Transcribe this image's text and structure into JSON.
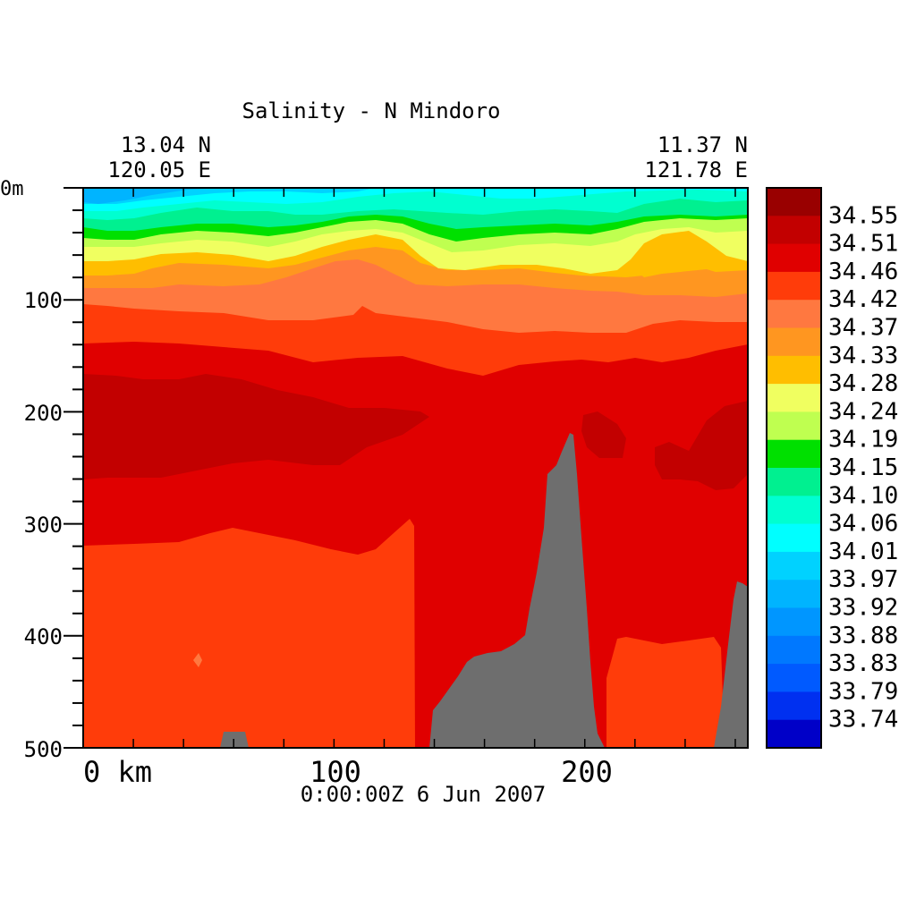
{
  "chart_data": {
    "type": "heatmap",
    "title": "Salinity - N Mindoro",
    "start_point": {
      "lat": "13.04 N",
      "lon": "120.05 E"
    },
    "end_point": {
      "lat": "11.37 N",
      "lon": "121.78 E"
    },
    "timestamp": "0:00:00Z   6 Jun 2007",
    "x_axis": {
      "unit": "km",
      "range": [
        0,
        265
      ],
      "ticks": [
        {
          "value": 0,
          "label": "0 km"
        },
        {
          "value": 100,
          "label": "100"
        },
        {
          "value": 200,
          "label": "200"
        }
      ]
    },
    "y_axis": {
      "unit": "m",
      "range": [
        0,
        500
      ],
      "inverted": true,
      "ticks": [
        {
          "value": 0,
          "label": "0m"
        },
        {
          "value": 100,
          "label": "100"
        },
        {
          "value": 200,
          "label": "200"
        },
        {
          "value": 300,
          "label": "300"
        },
        {
          "value": 400,
          "label": "400"
        },
        {
          "value": 500,
          "label": "500"
        }
      ]
    },
    "colorbar": {
      "levels": [
        "34.55",
        "34.51",
        "34.46",
        "34.42",
        "34.37",
        "34.33",
        "34.28",
        "34.24",
        "34.19",
        "34.15",
        "34.10",
        "34.06",
        "34.01",
        "33.97",
        "33.92",
        "33.88",
        "33.83",
        "33.79",
        "33.74"
      ],
      "colors": [
        "#990000",
        "#c20000",
        "#e00000",
        "#ff3c0a",
        "#ff7840",
        "#ff9620",
        "#ffbe00",
        "#f0ff60",
        "#bfff50",
        "#00e000",
        "#00f090",
        "#00ffd0",
        "#00ffff",
        "#00d2ff",
        "#00b4ff",
        "#0096ff",
        "#0078ff",
        "#005aff",
        "#0030f0",
        "#0000c8"
      ]
    },
    "layers": [
      {
        "salinity_band": "33.92-33.97",
        "depth_range_m": [
          0,
          20
        ],
        "note": "near-surface at western end"
      },
      {
        "salinity_band": "33.97-34.06",
        "depth_range_m": [
          0,
          35
        ]
      },
      {
        "salinity_band": "34.10-34.15",
        "depth_range_m": [
          35,
          45
        ]
      },
      {
        "salinity_band": "34.24-34.33",
        "depth_range_m": [
          50,
          100
        ]
      },
      {
        "salinity_band": "34.37-34.42",
        "depth_range_m": [
          100,
          150
        ]
      },
      {
        "salinity_band": "34.46-34.51",
        "depth_range_m": [
          150,
          500
        ]
      },
      {
        "salinity_band": "34.51-34.55",
        "depth_range_m": [
          170,
          260
        ],
        "x_range_km": [
          0,
          130
        ]
      },
      {
        "salinity_band": "34.42-34.46",
        "depth_range_m": [
          300,
          500
        ],
        "x_range_km": [
          0,
          133
        ]
      }
    ],
    "bathymetry": [
      {
        "x_range_km": [
          138,
          205
        ],
        "peak_depth_m": 220,
        "note": "seamount"
      },
      {
        "x_range_km": [
          252,
          265
        ],
        "peak_depth_m": 350
      },
      {
        "x_range_km": [
          55,
          66
        ],
        "peak_depth_m": 490
      }
    ]
  }
}
